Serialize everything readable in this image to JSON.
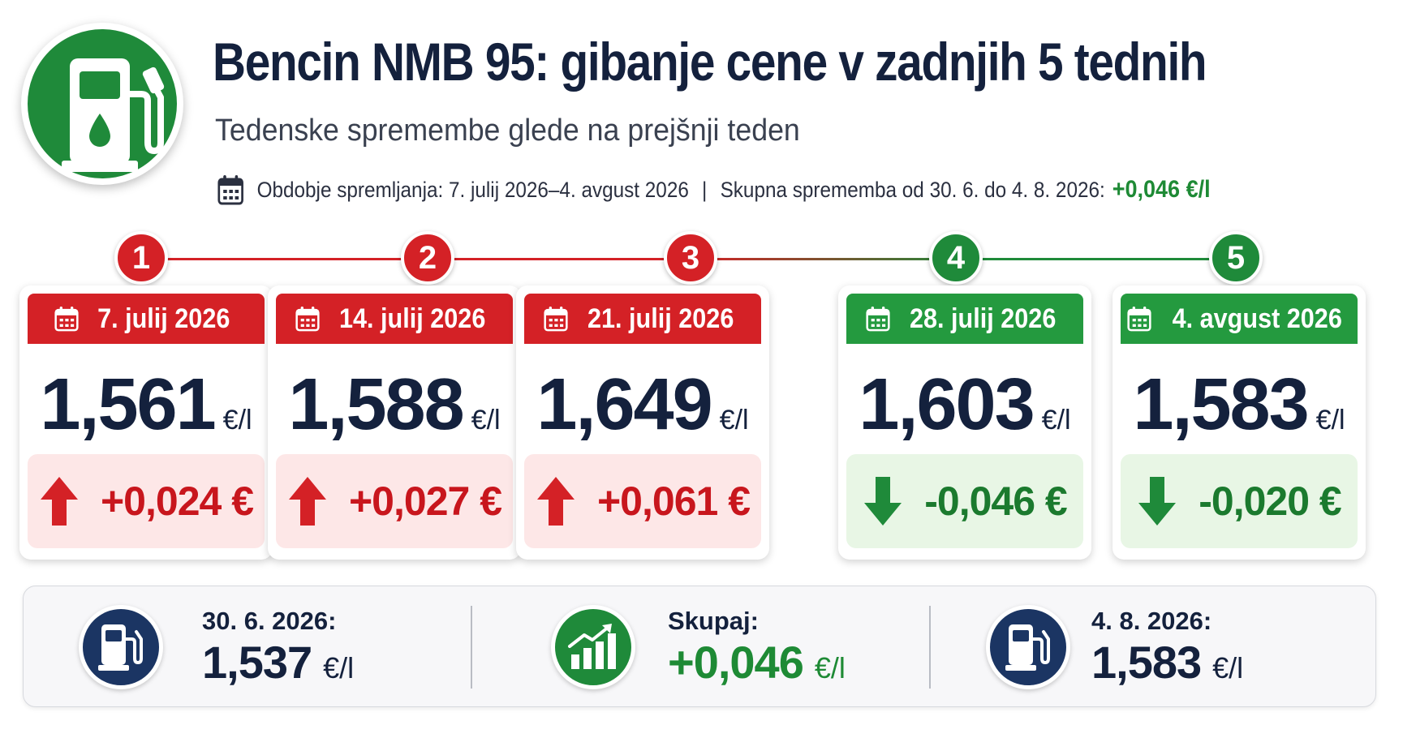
{
  "header": {
    "title": "Bencin NMB 95: gibanje cene v zadnjih 5 tednih",
    "subtitle": "Tedenske spremembe glede na prejšnji teden",
    "period_text": "Obdobje spremljanja: 7. julij 2026–4. avgust 2026",
    "separator": "|",
    "total_text": "Skupna sprememba od 30. 6. do 4. 8. 2026:",
    "total_value": "+0,046 €/l"
  },
  "colors": {
    "up": "#d42126",
    "down": "#1f8a3a",
    "navy": "#14213d"
  },
  "weeks": [
    {
      "step": "1",
      "date": "7. julij 2026",
      "price": "1,561",
      "unit": "€/l",
      "change": "+0,024 €",
      "direction": "up"
    },
    {
      "step": "2",
      "date": "14. julij 2026",
      "price": "1,588",
      "unit": "€/l",
      "change": "+0,027 €",
      "direction": "up"
    },
    {
      "step": "3",
      "date": "21. julij 2026",
      "price": "1,649",
      "unit": "€/l",
      "change": "+0,061 €",
      "direction": "up"
    },
    {
      "step": "4",
      "date": "28. julij 2026",
      "price": "1,603",
      "unit": "€/l",
      "change": "-0,046 €",
      "direction": "down"
    },
    {
      "step": "5",
      "date": "4. avgust 2026",
      "price": "1,583",
      "unit": "€/l",
      "change": "-0,020 €",
      "direction": "down"
    }
  ],
  "summary": {
    "start": {
      "label": "30. 6. 2026:",
      "value": "1,537",
      "unit": "€/l",
      "icon": "fuel-pump-icon"
    },
    "total": {
      "label": "Skupaj:",
      "value": "+0,046",
      "unit": "€/l",
      "icon": "growth-chart-icon"
    },
    "end": {
      "label": "4. 8. 2026:",
      "value": "1,583",
      "unit": "€/l",
      "icon": "fuel-pump-icon"
    }
  }
}
